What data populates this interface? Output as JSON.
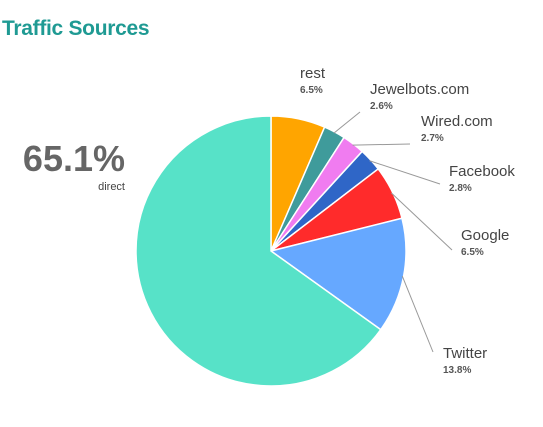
{
  "chart_data": {
    "type": "pie",
    "title": "Traffic Sources",
    "start_angle_deg": 0,
    "direction": "clockwise",
    "slices": [
      {
        "label": "rest",
        "value": 6.5,
        "display": "6.5%",
        "color": "#ffa500"
      },
      {
        "label": "Jewelbots.com",
        "value": 2.6,
        "display": "2.6%",
        "color": "#3f9b9b"
      },
      {
        "label": "Wired.com",
        "value": 2.7,
        "display": "2.7%",
        "color": "#f07cf0"
      },
      {
        "label": "Facebook",
        "value": 2.8,
        "display": "2.8%",
        "color": "#2f66c7"
      },
      {
        "label": "Google",
        "value": 6.5,
        "display": "6.5%",
        "color": "#ff2b2b"
      },
      {
        "label": "Twitter",
        "value": 13.8,
        "display": "13.8%",
        "color": "#66a8ff"
      },
      {
        "label": "direct",
        "value": 65.1,
        "display": "65.1%",
        "color": "#57e2c8"
      }
    ]
  }
}
